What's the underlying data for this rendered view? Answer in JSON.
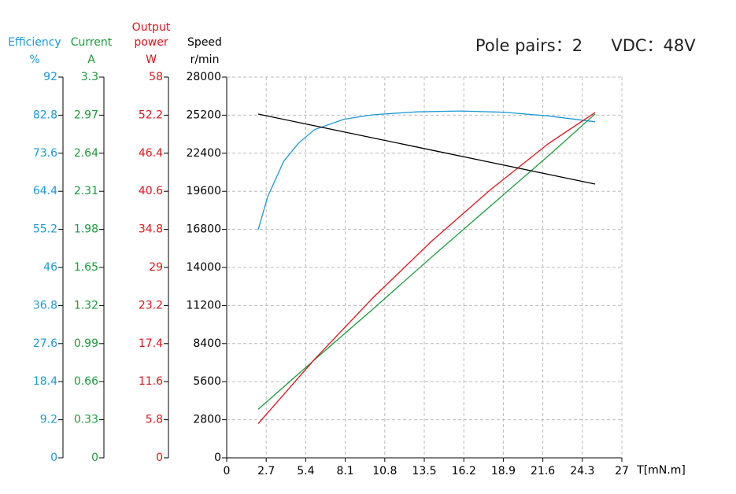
{
  "chart_data": {
    "type": "line",
    "title": [
      "Pole pairs：2",
      "VDC：48V"
    ],
    "x_label": "T[mN.m]",
    "xlim": [
      0,
      27
    ],
    "xticks": [
      0,
      2.7,
      5.4,
      8.1,
      10.8,
      13.5,
      16.2,
      18.9,
      21.6,
      24.3,
      27
    ],
    "grid": true,
    "axes": [
      {
        "title": [
          "Efficiency"
        ],
        "unit": "%",
        "color": "#1a9ad6",
        "ylim": [
          0,
          92
        ],
        "yticks": [
          0,
          9.2,
          18.4,
          27.6,
          36.8,
          46,
          55.2,
          64.4,
          73.6,
          82.8,
          92
        ]
      },
      {
        "title": [
          "Current"
        ],
        "unit": "A",
        "color": "#1a9b3c",
        "ylim": [
          0,
          3.3
        ],
        "yticks": [
          0,
          0.33,
          0.66,
          0.99,
          1.32,
          1.65,
          1.98,
          2.31,
          2.64,
          2.97,
          3.3
        ]
      },
      {
        "title": [
          "Output",
          "power"
        ],
        "unit": "W",
        "color": "#e0141e",
        "ylim": [
          0,
          58
        ],
        "yticks": [
          0,
          5.8,
          11.6,
          17.4,
          23.2,
          29,
          34.8,
          40.6,
          46.4,
          52.2,
          58
        ]
      },
      {
        "title": [
          "Speed"
        ],
        "unit": "r/min",
        "color": "#000000",
        "ylim": [
          0,
          28000
        ],
        "yticks": [
          0,
          2800,
          5600,
          8400,
          11200,
          14000,
          16800,
          19600,
          22400,
          25200,
          28000
        ]
      }
    ],
    "series": [
      {
        "axis": 0,
        "color": "#1a9ad6",
        "x": [
          2.15,
          2.8,
          3.9,
          4.9,
          6,
          8,
          10,
          13,
          16,
          19,
          22,
          25.17
        ],
        "values": [
          55.1,
          63.1,
          71.7,
          76,
          79.3,
          81.8,
          82.9,
          83.6,
          83.8,
          83.5,
          82.6,
          81.2
        ]
      },
      {
        "axis": 1,
        "color": "#1a9b3c",
        "x": [
          2.15,
          6,
          10,
          14,
          18,
          22,
          25.17
        ],
        "values": [
          0.42,
          0.85,
          1.29,
          1.74,
          2.18,
          2.62,
          2.98
        ]
      },
      {
        "axis": 2,
        "color": "#e0141e",
        "x": [
          2.15,
          6,
          10,
          14,
          18,
          22,
          25.17
        ],
        "values": [
          5.2,
          15,
          24.4,
          33,
          40.8,
          47.9,
          52.6
        ]
      },
      {
        "axis": 3,
        "color": "#000000",
        "x": [
          2.15,
          6,
          10,
          14,
          18,
          22,
          25.17
        ],
        "values": [
          25280,
          24419,
          23525,
          22630,
          21736,
          20841,
          20132
        ]
      }
    ]
  }
}
